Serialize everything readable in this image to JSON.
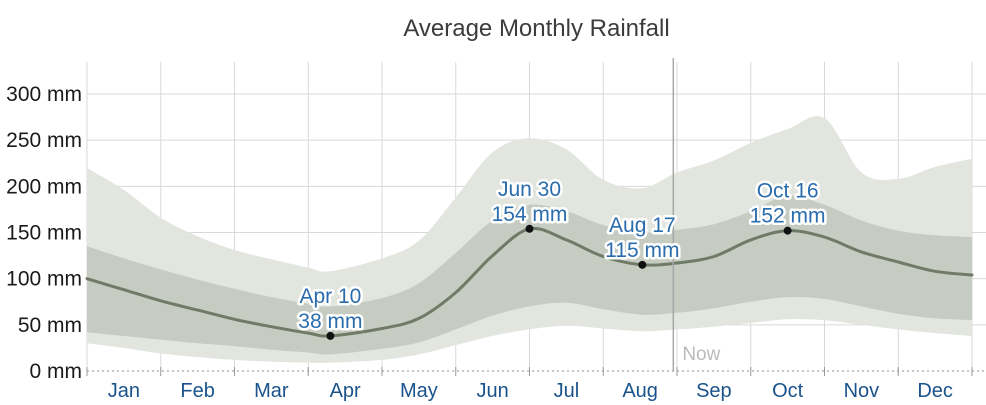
{
  "title": "Average Monthly Rainfall",
  "colors": {
    "band_outer": "#e2e6df",
    "band_inner": "#c6ccc1",
    "mean_line": "#6f7a67",
    "marker": "#111111",
    "annotation_text": "#2b6cad",
    "annotation_halo": "#ffffff",
    "month_label": "#1a538c",
    "y_label": "#1a1a1a",
    "grid": "#d9d9d9",
    "zero_line": "#8f8f8f",
    "tick": "#999999",
    "now_line": "#a8a8a8",
    "now_text": "#bbbbbb",
    "title_text": "#3c3c3c"
  },
  "chart_data": {
    "type": "area",
    "title": "Average Monthly Rainfall",
    "unit": "mm",
    "ylim": [
      0,
      300
    ],
    "grid": "on",
    "legend": "none",
    "y_ticks": [
      {
        "value": 0,
        "label": "0 mm"
      },
      {
        "value": 50,
        "label": "50 mm"
      },
      {
        "value": 100,
        "label": "100 mm"
      },
      {
        "value": 150,
        "label": "150 mm"
      },
      {
        "value": 200,
        "label": "200 mm"
      },
      {
        "value": 250,
        "label": "250 mm"
      },
      {
        "value": 300,
        "label": "300 mm"
      }
    ],
    "months": [
      "Jan",
      "Feb",
      "Mar",
      "Apr",
      "May",
      "Jun",
      "Jul",
      "Aug",
      "Sep",
      "Oct",
      "Nov",
      "Dec"
    ],
    "now": {
      "label": "Now",
      "month_frac": 7.95
    },
    "series": {
      "x_month_frac": [
        0,
        0.5,
        1,
        1.5,
        2,
        2.5,
        3,
        3.3,
        4,
        4.5,
        5,
        5.5,
        6.0,
        6.5,
        7,
        7.53,
        8,
        8.5,
        9,
        9.5,
        10,
        10.5,
        11,
        11.5,
        12
      ],
      "mean": [
        100,
        88,
        76,
        66,
        56,
        48,
        41,
        38,
        46,
        57,
        85,
        125,
        154,
        142,
        124,
        115,
        117,
        124,
        142,
        152,
        145,
        129,
        118,
        108,
        104
      ],
      "inner_top": [
        135,
        122,
        110,
        99,
        89,
        80,
        73,
        70,
        79,
        95,
        128,
        163,
        180,
        173,
        158,
        150,
        153,
        159,
        173,
        190,
        180,
        163,
        152,
        147,
        145
      ],
      "inner_bottom": [
        42,
        38,
        34,
        30,
        27,
        23,
        20,
        18,
        24,
        31,
        45,
        60,
        70,
        74,
        67,
        61,
        63,
        68,
        75,
        80,
        78,
        70,
        62,
        57,
        55
      ],
      "outer_top": [
        220,
        196,
        166,
        146,
        131,
        121,
        112,
        108,
        122,
        141,
        188,
        237,
        252,
        240,
        207,
        198,
        215,
        228,
        247,
        262,
        274,
        215,
        208,
        221,
        230
      ],
      "outer_bottom": [
        30,
        25,
        19,
        15,
        12,
        10,
        9,
        9,
        12,
        18,
        28,
        38,
        45,
        49,
        46,
        43,
        45,
        48,
        52,
        56,
        55,
        50,
        45,
        41,
        38
      ]
    },
    "annotations": [
      {
        "month_frac": 3.3,
        "value": 38,
        "date": "Apr 10",
        "value_label": "38 mm"
      },
      {
        "month_frac": 6.0,
        "value": 154,
        "date": "Jun 30",
        "value_label": "154 mm"
      },
      {
        "month_frac": 7.53,
        "value": 115,
        "date": "Aug 17",
        "value_label": "115 mm"
      },
      {
        "month_frac": 9.5,
        "value": 152,
        "date": "Oct 16",
        "value_label": "152 mm"
      }
    ]
  }
}
